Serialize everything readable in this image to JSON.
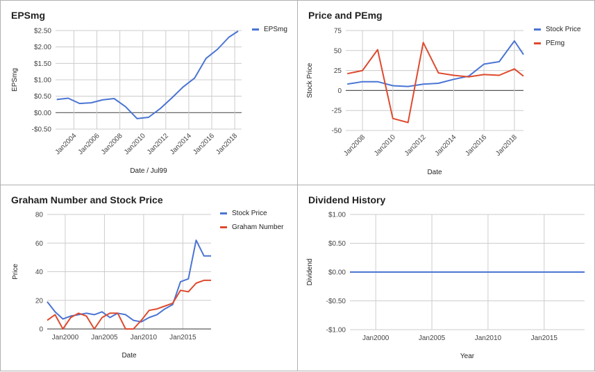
{
  "colors": {
    "blue": "#4a74d4",
    "red": "#de4a2e",
    "grid": "#cccccc",
    "zero": "#555555"
  },
  "chart_data": [
    {
      "id": "epsmg",
      "type": "line",
      "title": "EPSmg",
      "xlabel": "Date / Jul99",
      "ylabel": "EPSmg",
      "xlim": [
        2002.4,
        2018.6
      ],
      "ylim": [
        -0.5,
        2.5
      ],
      "y_ticks": [
        2.5,
        2.0,
        1.5,
        1.0,
        0.5,
        0.0,
        -0.5
      ],
      "y_tick_labels": [
        "$2.50",
        "$2.00",
        "$1.50",
        "$1.00",
        "$0.50",
        "$0.00",
        "-$0.50"
      ],
      "x_ticks": [
        2004,
        2006,
        2008,
        2010,
        2012,
        2014,
        2016,
        2018
      ],
      "x_tick_labels": [
        "Jan2004",
        "Jan2006",
        "Jan2008",
        "Jan2010",
        "Jan2012",
        "Jan2014",
        "Jan2016",
        "Jan2018"
      ],
      "legend_position": "top-right",
      "series": [
        {
          "name": "EPSmg",
          "color": "blue",
          "x": [
            2002.5,
            2003.5,
            2004.5,
            2005.5,
            2006.5,
            2007.5,
            2008.5,
            2009.5,
            2010.5,
            2011.5,
            2012.5,
            2013.5,
            2014.5,
            2015.5,
            2016.5,
            2017.5,
            2018.3
          ],
          "y": [
            0.4,
            0.44,
            0.28,
            0.3,
            0.39,
            0.43,
            0.18,
            -0.18,
            -0.14,
            0.12,
            0.44,
            0.78,
            1.05,
            1.65,
            1.93,
            2.3,
            2.48
          ]
        }
      ]
    },
    {
      "id": "price-pemg",
      "type": "line",
      "title": "Price and PEmg",
      "xlabel": "Date",
      "ylabel": "Stock Price",
      "xlim": [
        2006.9,
        2018.6
      ],
      "ylim": [
        -50,
        75
      ],
      "y_ticks": [
        75,
        50,
        25,
        0,
        -25,
        -50
      ],
      "y_tick_labels": [
        "75",
        "50",
        "25",
        "0",
        "-25",
        "-50"
      ],
      "x_ticks": [
        2008,
        2010,
        2012,
        2014,
        2016,
        2018
      ],
      "x_tick_labels": [
        "Jan2008",
        "Jan2010",
        "Jan2012",
        "Jan2014",
        "Jan2016",
        "Jan2018"
      ],
      "legend_position": "top-right",
      "series": [
        {
          "name": "Stock Price",
          "color": "blue",
          "x": [
            2007.0,
            2008.0,
            2009.0,
            2010.0,
            2011.0,
            2012.0,
            2013.0,
            2014.0,
            2015.0,
            2016.0,
            2017.0,
            2018.0,
            2018.6
          ],
          "y": [
            8,
            11,
            11,
            6,
            5,
            8,
            9,
            14,
            18,
            33,
            36,
            62,
            45
          ]
        },
        {
          "name": "PEmg",
          "color": "red",
          "x": [
            2007.0,
            2008.0,
            2009.0,
            2010.0,
            2011.0,
            2012.0,
            2013.0,
            2014.0,
            2015.0,
            2016.0,
            2017.0,
            2018.0,
            2018.6
          ],
          "y": [
            21,
            25,
            51,
            -35,
            -40,
            60,
            22,
            19,
            17,
            20,
            19,
            27,
            18
          ]
        }
      ]
    },
    {
      "id": "graham",
      "type": "line",
      "title": "Graham Number and Stock Price",
      "xlabel": "Date",
      "ylabel": "Price",
      "xlim": [
        1997.7,
        2018.6
      ],
      "ylim": [
        0,
        80
      ],
      "y_ticks": [
        80,
        60,
        40,
        20,
        0
      ],
      "y_tick_labels": [
        "80",
        "60",
        "40",
        "20",
        "0"
      ],
      "x_ticks": [
        2000,
        2005,
        2010,
        2015
      ],
      "x_tick_labels": [
        "Jan2000",
        "Jan2005",
        "Jan2010",
        "Jan2015"
      ],
      "legend_position": "top-right",
      "series": [
        {
          "name": "Stock Price",
          "color": "blue",
          "x": [
            1997.7,
            1998.7,
            1999.7,
            2000.7,
            2001.7,
            2002.7,
            2003.7,
            2004.7,
            2005.7,
            2006.7,
            2007.7,
            2008.7,
            2009.7,
            2010.7,
            2011.7,
            2012.7,
            2013.7,
            2014.7,
            2015.7,
            2016.7,
            2017.7,
            2018.6
          ],
          "y": [
            19,
            12,
            7,
            9,
            10,
            11,
            10,
            12,
            8,
            11,
            10,
            6,
            5,
            8,
            10,
            14,
            17,
            33,
            35,
            62,
            51,
            51
          ]
        },
        {
          "name": "Graham Number",
          "color": "red",
          "x": [
            1997.7,
            1998.7,
            1999.7,
            2000.7,
            2001.7,
            2002.7,
            2003.7,
            2004.7,
            2005.7,
            2006.7,
            2007.7,
            2008.7,
            2009.7,
            2010.7,
            2011.7,
            2012.7,
            2013.7,
            2014.7,
            2015.7,
            2016.7,
            2017.7,
            2018.6
          ],
          "y": [
            6,
            10,
            0,
            8,
            11,
            9,
            0,
            8,
            11,
            11,
            0,
            0,
            6,
            13,
            14,
            16,
            18,
            27,
            26,
            32,
            34,
            34
          ]
        }
      ]
    },
    {
      "id": "dividend",
      "type": "line",
      "title": "Dividend History",
      "xlabel": "Year",
      "ylabel": "Dividend",
      "xlim": [
        1997.7,
        2018.6
      ],
      "ylim": [
        -1.0,
        1.0
      ],
      "y_ticks": [
        1.0,
        0.5,
        0.0,
        -0.5,
        -1.0
      ],
      "y_tick_labels": [
        "$1.00",
        "$0.50",
        "$0.00",
        "-$0.50",
        "-$1.00"
      ],
      "x_ticks": [
        2000,
        2005,
        2010,
        2015
      ],
      "x_tick_labels": [
        "Jan2000",
        "Jan2005",
        "Jan2010",
        "Jan2015"
      ],
      "legend_position": "none",
      "series": [
        {
          "color": "blue",
          "x": [
            1997.7,
            2018.6
          ],
          "y": [
            0.0,
            0.0
          ]
        }
      ]
    }
  ]
}
